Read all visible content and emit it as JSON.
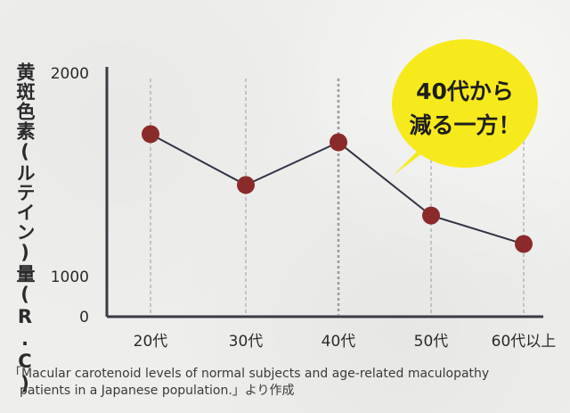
{
  "chart_data": {
    "type": "line",
    "categories": [
      "20代",
      "30代",
      "40代",
      "50代",
      "60代以上"
    ],
    "values": [
      1700,
      1450,
      1660,
      1300,
      1160
    ],
    "ylabel": "黄斑色素(ルテイン)量(R.C)",
    "yticks": [
      {
        "value": 2000,
        "label": "2000"
      },
      {
        "value": 1000,
        "label": "1000"
      },
      {
        "value": 0,
        "label": "0"
      }
    ],
    "ylim": [
      0,
      2000
    ],
    "grid": "vertical-dashed",
    "line_color": "#333344",
    "marker_color": "#8a2a2a"
  },
  "callout": {
    "line1": "40代から",
    "line2": "減る一方！",
    "color": "#f7ea1c"
  },
  "source": {
    "line1": "「Macular carotenoid levels of normal subjects and age-related maculopathy",
    "line2": "patients in a Japanese population.」より作成"
  }
}
